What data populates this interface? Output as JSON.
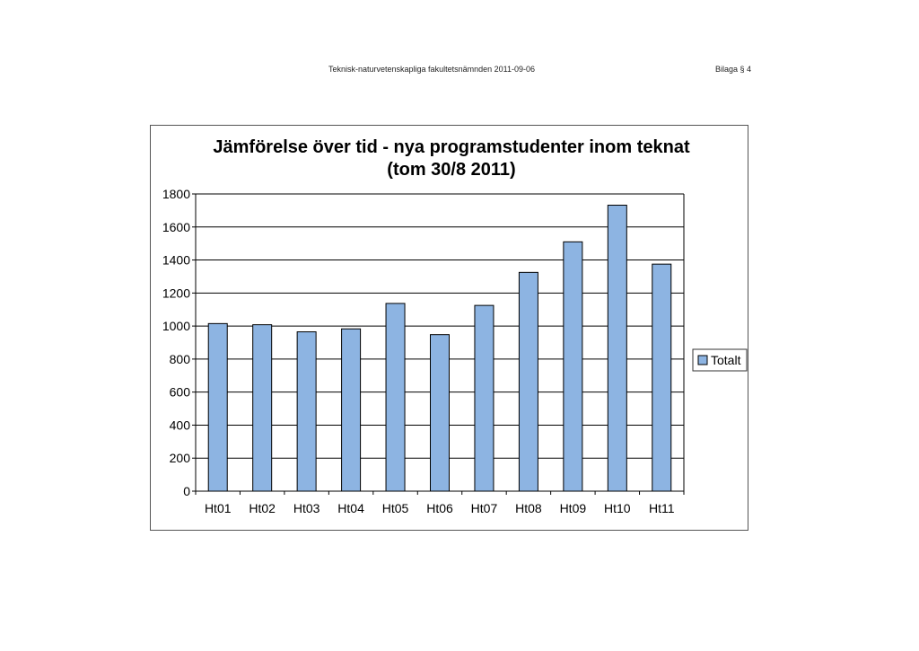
{
  "page": {
    "header_center": "Teknisk-naturvetenskapliga fakultetsnämnden 2011-09-06",
    "header_right": "Bilaga § 4"
  },
  "chart_data": {
    "type": "bar",
    "title": "Jämförelse över tid - nya programstudenter inom teknat",
    "subtitle": "(tom 30/8 2011)",
    "xlabel": "",
    "ylabel": "",
    "categories": [
      "Ht01",
      "Ht02",
      "Ht03",
      "Ht04",
      "Ht05",
      "Ht06",
      "Ht07",
      "Ht08",
      "Ht09",
      "Ht10",
      "Ht11"
    ],
    "series": [
      {
        "name": "Totalt",
        "values": [
          1015,
          1008,
          965,
          983,
          1137,
          948,
          1125,
          1325,
          1510,
          1732,
          1375
        ],
        "color": "#8db4e2"
      }
    ],
    "ylim": [
      0,
      1800
    ],
    "yticks": [
      "0",
      "200",
      "400",
      "600",
      "800",
      "1000",
      "1200",
      "1400",
      "1600",
      "1800"
    ],
    "grid": true,
    "legend_position": "right"
  }
}
